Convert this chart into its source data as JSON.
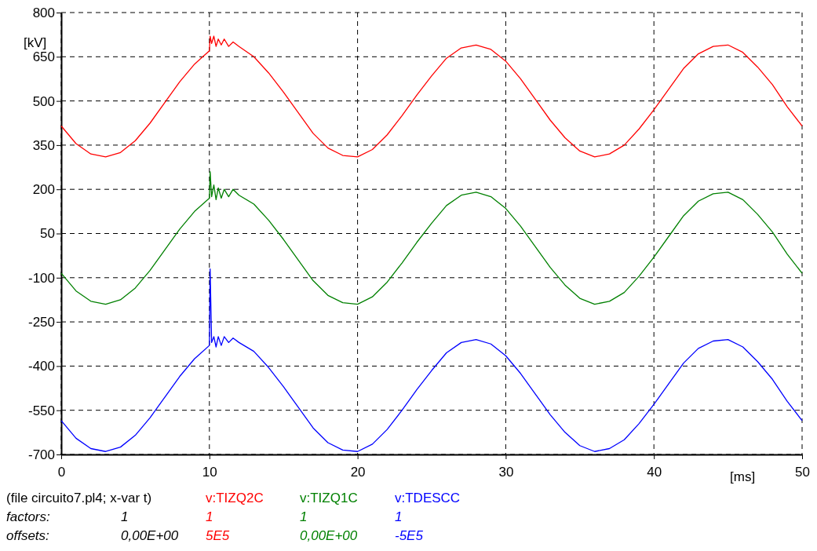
{
  "chart_data": {
    "type": "line",
    "xlabel": "[ms]",
    "ylabel": "[kV]",
    "xlim": [
      0,
      50
    ],
    "xticks": [
      0,
      10,
      20,
      30,
      40,
      50
    ],
    "ylim": [
      -700,
      800
    ],
    "yticks": [
      -700,
      -550,
      -400,
      -250,
      -100,
      50,
      200,
      350,
      500,
      650,
      800
    ],
    "grid": true,
    "legend": "bottom",
    "line_style": "solid",
    "marker": "none",
    "x": [
      0,
      1,
      2,
      3,
      4,
      5,
      6,
      7,
      8,
      9,
      10,
      10.05,
      10.15,
      10.3,
      10.45,
      10.6,
      10.8,
      11,
      11.3,
      11.6,
      12,
      13,
      14,
      15,
      16,
      17,
      18,
      19,
      20,
      21,
      22,
      23,
      24,
      25,
      26,
      27,
      28,
      29,
      30,
      31,
      32,
      33,
      34,
      35,
      36,
      37,
      38,
      39,
      40,
      41,
      42,
      43,
      44,
      45,
      46,
      47,
      48,
      49,
      50
    ],
    "series": [
      {
        "name": "v:TIZQ2C",
        "color": "#ff0000",
        "values": [
          415,
          355,
          320,
          310,
          325,
          365,
          425,
          495,
          565,
          625,
          670,
          720,
          695,
          720,
          685,
          710,
          690,
          710,
          685,
          700,
          685,
          650,
          595,
          530,
          460,
          390,
          340,
          315,
          310,
          335,
          385,
          450,
          520,
          585,
          645,
          680,
          690,
          675,
          635,
          575,
          505,
          435,
          375,
          330,
          310,
          320,
          350,
          405,
          470,
          540,
          610,
          660,
          685,
          690,
          665,
          615,
          555,
          480,
          415
        ]
      },
      {
        "name": "v:TIZQ1C",
        "color": "#008000",
        "values": [
          -85,
          -145,
          -180,
          -190,
          -175,
          -135,
          -75,
          -5,
          65,
          125,
          170,
          260,
          175,
          215,
          165,
          205,
          170,
          200,
          175,
          200,
          180,
          150,
          95,
          30,
          -40,
          -110,
          -160,
          -185,
          -190,
          -165,
          -115,
          -50,
          20,
          85,
          145,
          180,
          190,
          175,
          135,
          75,
          5,
          -65,
          -125,
          -170,
          -190,
          -180,
          -150,
          -95,
          -30,
          40,
          110,
          160,
          185,
          190,
          165,
          115,
          55,
          -20,
          -85
        ]
      },
      {
        "name": "v:TDESCC",
        "color": "#0000ff",
        "values": [
          -585,
          -645,
          -680,
          -690,
          -675,
          -635,
          -575,
          -505,
          -435,
          -375,
          -330,
          -70,
          -320,
          -300,
          -335,
          -300,
          -330,
          -300,
          -320,
          -305,
          -320,
          -350,
          -405,
          -470,
          -540,
          -610,
          -660,
          -685,
          -690,
          -665,
          -615,
          -550,
          -480,
          -415,
          -355,
          -320,
          -310,
          -325,
          -365,
          -425,
          -495,
          -565,
          -625,
          -670,
          -690,
          -680,
          -650,
          -595,
          -530,
          -460,
          -390,
          -340,
          -315,
          -310,
          -335,
          -385,
          -445,
          -520,
          -585
        ]
      }
    ],
    "annotations": [
      "(file circuito7.pl4; x-var t)",
      "factors:",
      "offsets:",
      "1",
      "0,00E+00",
      "1",
      "5E5",
      "1",
      "0,00E+00",
      "1",
      "-5E5"
    ]
  }
}
